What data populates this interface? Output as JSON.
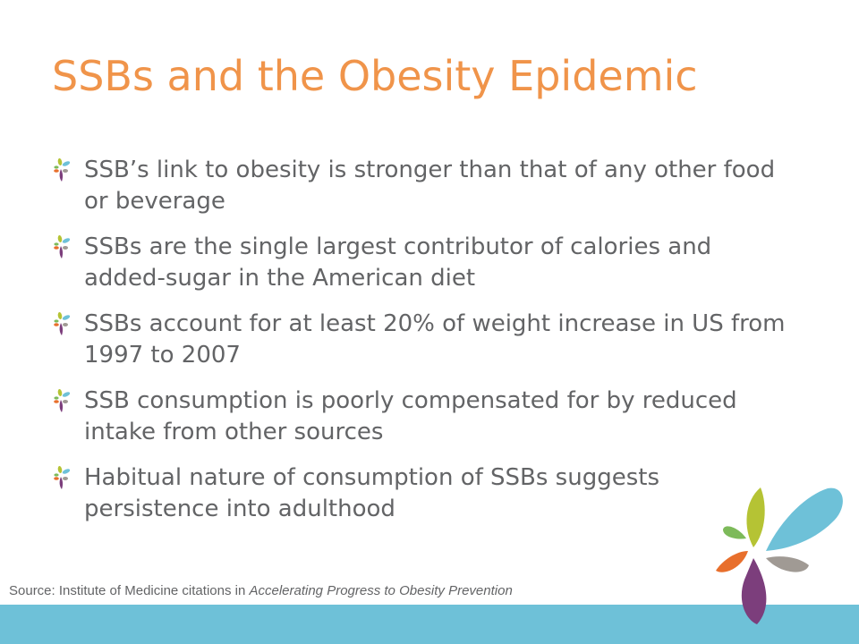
{
  "slide": {
    "title": "SSBs and the Obesity Epidemic",
    "bullets": [
      "SSB’s link to obesity is stronger than that of any other food or beverage",
      "SSBs are the single largest contributor of calories and added-sugar in the American diet",
      "SSBs account for at least 20% of weight increase in US from 1997 to 2007",
      "SSB consumption is poorly compensated for by reduced intake from other sources",
      "Habitual nature of consumption of SSBs suggests persistence into adulthood"
    ],
    "source": {
      "prefix": "Source: Institute of Medicine citations in ",
      "work": "Accelerating Progress to Obesity Prevention"
    }
  },
  "colors": {
    "title": "#F0944A",
    "body_text": "#636466",
    "footer_band": "#6EC1D8",
    "petal_lime": "#B5C334",
    "petal_blue": "#6EC1D8",
    "petal_green": "#7DBA5A",
    "petal_orange": "#E86F2C",
    "petal_gray": "#A09A94",
    "petal_purple": "#7C3E7C"
  },
  "icons": {
    "bullet": "flower-bullet-icon",
    "decoration": "petal-flower-logo"
  }
}
